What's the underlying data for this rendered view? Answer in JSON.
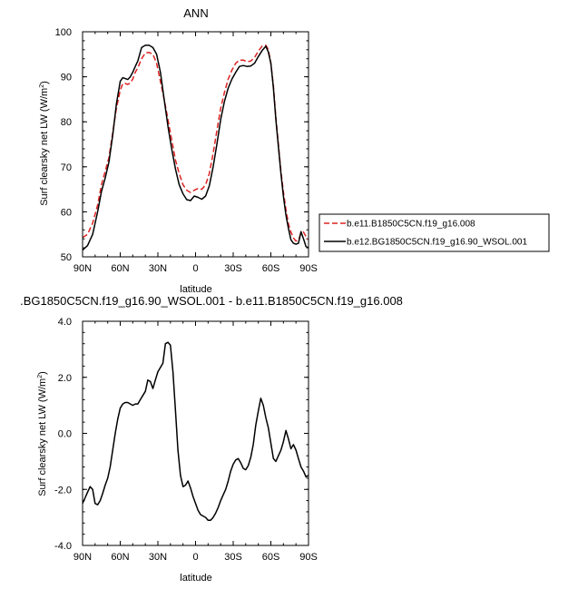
{
  "chart_data": [
    {
      "type": "line",
      "title": "ANN",
      "xlabel": "latitude",
      "ylabel": "Surf clearsky net LW (W/m²)",
      "ylabel_main": "Surf clearsky net LW (W/m",
      "ylabel_sup": "2",
      "ylabel_tail": ")",
      "xlim": [
        -90,
        90
      ],
      "ylim": [
        50,
        100
      ],
      "xticks": [
        -90,
        -60,
        -30,
        0,
        30,
        60,
        90
      ],
      "xtick_labels": [
        "90N",
        "60N",
        "30N",
        "0",
        "30S",
        "60S",
        "90S"
      ],
      "yticks": [
        50,
        60,
        70,
        80,
        90,
        100
      ],
      "ytick_labels": [
        "50",
        "60",
        "70",
        "80",
        "90",
        "100"
      ],
      "legend_position": "right",
      "series": [
        {
          "name": "b.e11.B1850C5CN.f19_g16.008",
          "color": "#dd2222",
          "dash": "dashed",
          "x": [
            -90,
            -86,
            -82,
            -78,
            -75,
            -72,
            -69,
            -66,
            -63,
            -60,
            -58,
            -56,
            -54,
            -52,
            -50,
            -48,
            -46,
            -43,
            -40,
            -37,
            -34,
            -31,
            -28,
            -25,
            -22,
            -19,
            -16,
            -13,
            -10,
            -7,
            -4,
            -1,
            2,
            5,
            8,
            11,
            14,
            17,
            20,
            23,
            26,
            29,
            32,
            35,
            38,
            41,
            44,
            47,
            50,
            53,
            56,
            58,
            60,
            62,
            64,
            66,
            68,
            70,
            72,
            74,
            76,
            78,
            80,
            82,
            84,
            86,
            88,
            90
          ],
          "y": [
            54.3,
            55.0,
            57.5,
            61.5,
            66.0,
            69.0,
            72.0,
            77.5,
            83.0,
            87.0,
            88.5,
            88.5,
            88.3,
            88.6,
            89.5,
            91.0,
            92.0,
            94.0,
            95.3,
            95.4,
            95.0,
            93.0,
            89.0,
            85.0,
            80.5,
            76.0,
            71.5,
            68.5,
            66.0,
            64.8,
            64.3,
            64.8,
            65.2,
            65.0,
            66.0,
            68.5,
            73.0,
            78.0,
            83.0,
            86.5,
            89.5,
            91.5,
            93.0,
            93.7,
            93.7,
            93.3,
            93.5,
            94.3,
            95.7,
            96.8,
            97.0,
            96.0,
            93.0,
            88.0,
            81.0,
            75.0,
            69.0,
            64.5,
            60.5,
            57.3,
            55.5,
            54.2,
            53.5,
            53.7,
            55.2,
            55.5,
            54.5,
            53.8
          ]
        },
        {
          "name": "b.e12.BG1850C5CN.f19_g16.90_WSOL.001",
          "color": "#000000",
          "dash": "solid",
          "x": [
            -90,
            -86,
            -82,
            -78,
            -75,
            -72,
            -69,
            -66,
            -63,
            -60,
            -58,
            -56,
            -54,
            -52,
            -50,
            -48,
            -46,
            -43,
            -40,
            -37,
            -34,
            -31,
            -28,
            -25,
            -22,
            -19,
            -16,
            -13,
            -10,
            -7,
            -4,
            -1,
            2,
            5,
            8,
            11,
            14,
            17,
            20,
            23,
            26,
            29,
            32,
            35,
            38,
            41,
            44,
            47,
            50,
            53,
            56,
            58,
            60,
            62,
            64,
            66,
            68,
            70,
            72,
            74,
            76,
            78,
            80,
            82,
            84,
            86,
            88,
            90
          ],
          "y": [
            51.5,
            52.5,
            55.0,
            60.0,
            64.5,
            67.5,
            71.0,
            77.0,
            84.0,
            89.0,
            89.8,
            89.6,
            89.4,
            90.0,
            91.0,
            92.3,
            93.5,
            96.5,
            97.0,
            97.0,
            96.5,
            95.0,
            91.0,
            85.0,
            79.0,
            74.0,
            69.5,
            66.0,
            64.0,
            62.7,
            62.5,
            63.5,
            63.2,
            62.8,
            63.5,
            65.8,
            70.0,
            75.0,
            80.5,
            84.5,
            87.5,
            89.5,
            91.0,
            92.3,
            92.5,
            92.3,
            92.4,
            93.0,
            94.5,
            95.8,
            96.8,
            95.5,
            93.0,
            87.5,
            80.5,
            74.5,
            68.5,
            63.5,
            59.3,
            56.3,
            53.8,
            53.0,
            52.8,
            53.0,
            55.6,
            54.0,
            52.3,
            52.0
          ]
        }
      ]
    },
    {
      "type": "line",
      "title": ".BG1850C5CN.f19_g16.90_WSOL.001 - b.e11.B1850C5CN.f19_g16.008",
      "xlabel": "latitude",
      "ylabel": "Surf clearsky net LW (W/m²)",
      "ylabel_main": "Surf clearsky net LW (W/m",
      "ylabel_sup": "2",
      "ylabel_tail": ")",
      "xlim": [
        -90,
        90
      ],
      "ylim": [
        -4,
        4
      ],
      "xticks": [
        -90,
        -60,
        -30,
        0,
        30,
        60,
        90
      ],
      "xtick_labels": [
        "90N",
        "60N",
        "30N",
        "0",
        "30S",
        "60S",
        "90S"
      ],
      "yticks": [
        -4,
        -2,
        0,
        2,
        4
      ],
      "ytick_labels": [
        "-4.0",
        "-2.0",
        "0.0",
        "2.0",
        "4.0"
      ],
      "series": [
        {
          "color": "#000000",
          "dash": "solid",
          "x": [
            -90,
            -88,
            -86,
            -84,
            -82,
            -80,
            -78,
            -76,
            -74,
            -72,
            -70,
            -68,
            -66,
            -64,
            -62,
            -60,
            -58,
            -56,
            -54,
            -52,
            -50,
            -48,
            -46,
            -44,
            -42,
            -40,
            -38,
            -36,
            -34,
            -32,
            -30,
            -28,
            -26,
            -24,
            -22,
            -20,
            -18,
            -16,
            -14,
            -12,
            -10,
            -8,
            -6,
            -4,
            -2,
            0,
            2,
            4,
            6,
            8,
            10,
            12,
            14,
            16,
            18,
            20,
            22,
            24,
            26,
            28,
            30,
            32,
            34,
            36,
            38,
            40,
            42,
            44,
            46,
            48,
            50,
            52,
            54,
            56,
            58,
            60,
            62,
            64,
            66,
            68,
            70,
            72,
            74,
            76,
            78,
            80,
            82,
            84,
            86,
            88,
            90
          ],
          "y": [
            -2.5,
            -2.3,
            -2.1,
            -1.9,
            -2.0,
            -2.5,
            -2.55,
            -2.4,
            -2.15,
            -1.85,
            -1.6,
            -1.2,
            -0.6,
            0.0,
            0.5,
            0.9,
            1.05,
            1.1,
            1.1,
            1.05,
            1.0,
            1.05,
            1.05,
            1.2,
            1.35,
            1.5,
            1.9,
            1.85,
            1.6,
            1.9,
            2.2,
            2.35,
            2.5,
            3.2,
            3.25,
            3.15,
            2.2,
            0.8,
            -0.6,
            -1.5,
            -1.9,
            -1.85,
            -1.7,
            -1.95,
            -2.25,
            -2.5,
            -2.75,
            -2.9,
            -2.95,
            -3.0,
            -3.1,
            -3.1,
            -3.0,
            -2.85,
            -2.65,
            -2.4,
            -2.2,
            -2.0,
            -1.7,
            -1.35,
            -1.1,
            -0.95,
            -0.9,
            -1.05,
            -1.25,
            -1.3,
            -1.15,
            -0.85,
            -0.4,
            0.3,
            0.8,
            1.25,
            1.0,
            0.55,
            0.2,
            -0.35,
            -0.9,
            -1.0,
            -0.8,
            -0.6,
            -0.3,
            0.1,
            -0.2,
            -0.55,
            -0.4,
            -0.6,
            -0.9,
            -1.2,
            -1.35,
            -1.55,
            -1.5
          ]
        }
      ]
    }
  ]
}
